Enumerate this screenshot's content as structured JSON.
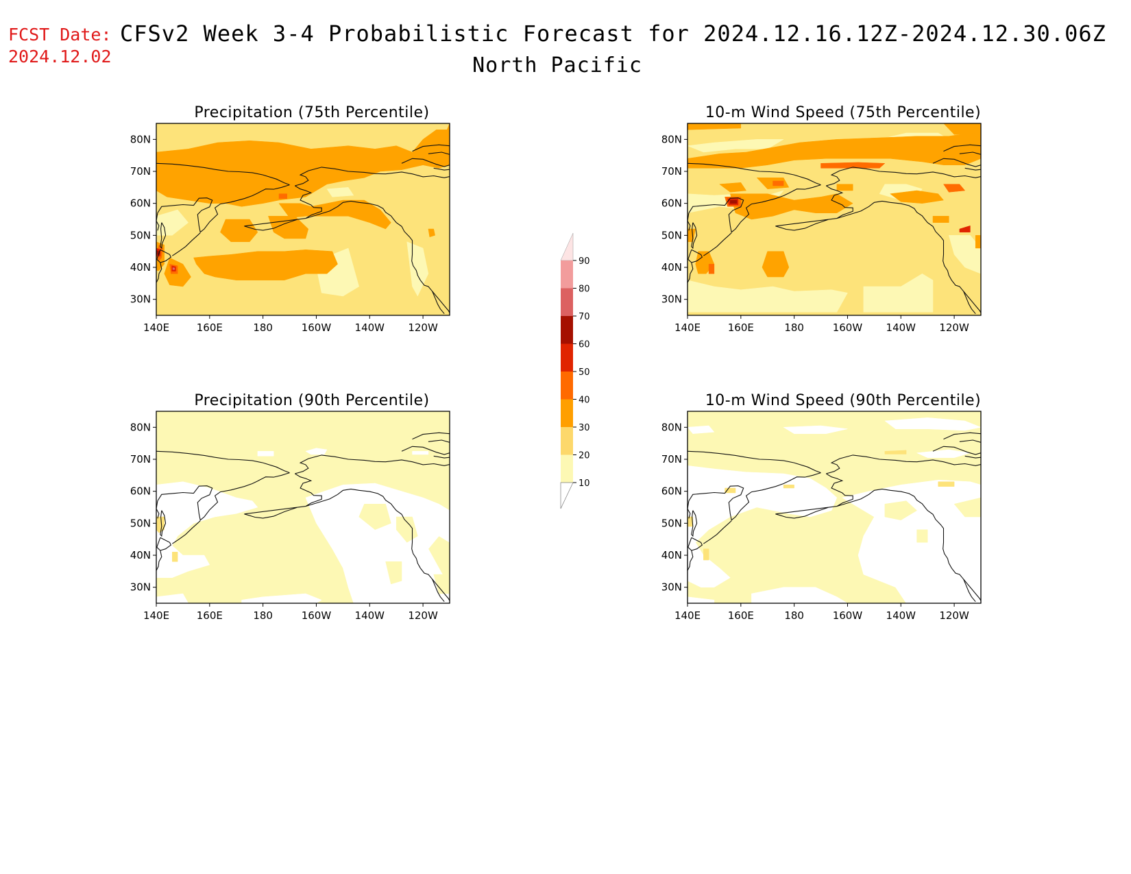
{
  "header": {
    "fcst_label": "FCST Date:",
    "fcst_date": "2024.12.02",
    "title": "CFSv2 Week 3-4 Probabilistic Forecast for 2024.12.16.12Z-2024.12.30.06Z",
    "subtitle": "North Pacific"
  },
  "axes": {
    "lat_ticks": [
      "80N",
      "70N",
      "60N",
      "50N",
      "40N",
      "30N"
    ],
    "lon_ticks": [
      "140E",
      "160E",
      "180",
      "160W",
      "140W",
      "120W"
    ]
  },
  "panels": [
    {
      "id": "precip75",
      "title": "Precipitation (75th Percentile)",
      "base_level": 20
    },
    {
      "id": "wind75",
      "title": "10-m Wind Speed (75th Percentile)",
      "base_level": 20
    },
    {
      "id": "precip90",
      "title": "Precipitation (90th Percentile)",
      "base_level": 10
    },
    {
      "id": "wind90",
      "title": "10-m Wind Speed (90th Percentile)",
      "base_level": 10
    }
  ],
  "colorbar": {
    "levels": [
      "90",
      "80",
      "70",
      "60",
      "50",
      "40",
      "30",
      "20",
      "10"
    ],
    "colors": [
      "#fde4e4",
      "#f29c9c",
      "#dc6161",
      "#a51000",
      "#e02400",
      "#ff6a00",
      "#ff9f00",
      "#fdd86b",
      "#fdf8b4"
    ]
  },
  "colors": {
    "c10": "#fdf8b4",
    "c20": "#fde37a",
    "c30": "#ffa300",
    "c40": "#ff6c00",
    "c50": "#e02400",
    "c60": "#a31000",
    "c70": "#de6a6a",
    "coast": "#111111",
    "title_red": "#e01818"
  }
}
